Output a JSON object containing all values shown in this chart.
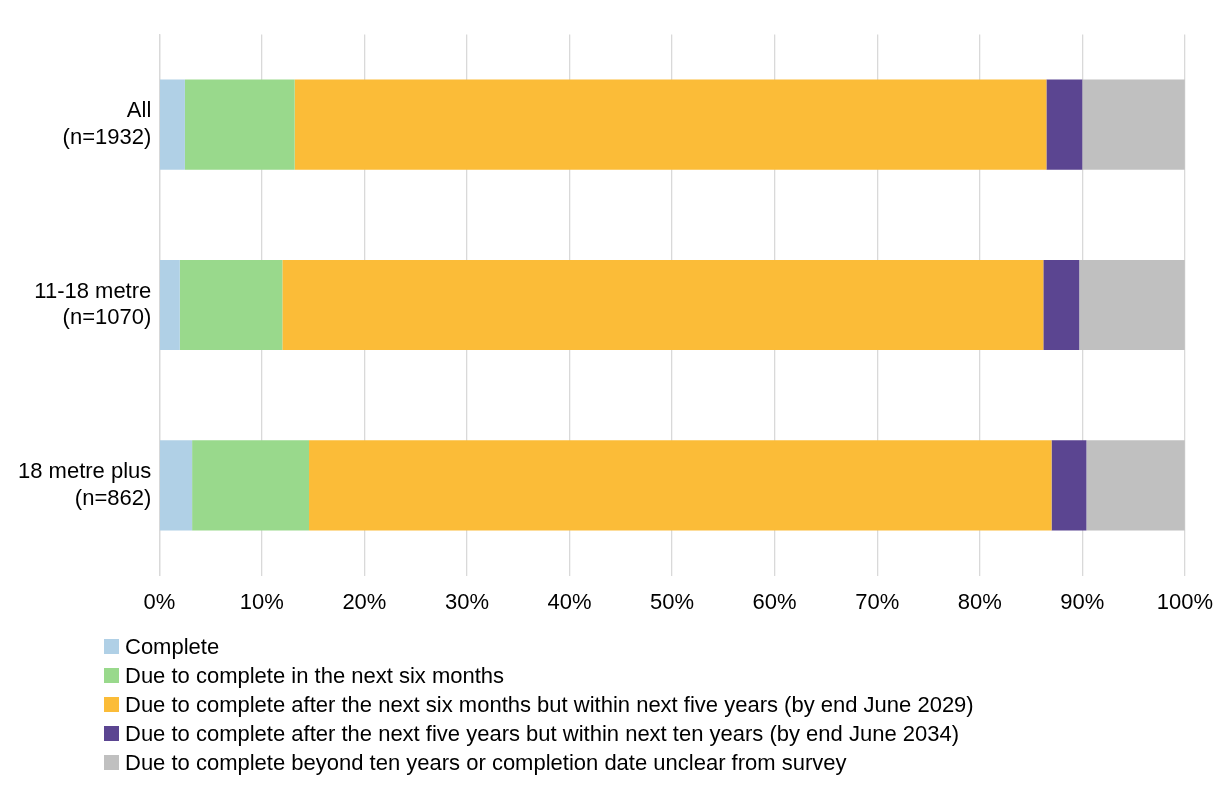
{
  "chart_data": {
    "type": "bar",
    "orientation": "horizontal",
    "stacked": true,
    "categories": [
      "All\n(n=1932)",
      "11-18 metre\n(n=1070)",
      "18 metre plus\n(n=862)"
    ],
    "series": [
      {
        "name": "Complete",
        "color": "#b0d0e6",
        "values": [
          2.5,
          2.0,
          3.2
        ]
      },
      {
        "name": "Due to complete in the next six months",
        "color": "#99d98c",
        "values": [
          10.7,
          10.0,
          11.4
        ]
      },
      {
        "name": "Due to complete after the next six months but within next five years (by end June 2029)",
        "color": "#fbbc38",
        "values": [
          73.3,
          74.2,
          72.4
        ]
      },
      {
        "name": "Due to complete after the next five years but within next ten years (by end June 2034)",
        "color": "#5b4591",
        "values": [
          3.5,
          3.5,
          3.4
        ]
      },
      {
        "name": "Due to complete beyond ten years or completion date unclear from survey",
        "color": "#c0c0c0",
        "values": [
          10.0,
          10.3,
          9.6
        ]
      }
    ],
    "xlim": [
      0,
      100
    ],
    "xticks": [
      {
        "value": 0,
        "label": "0%"
      },
      {
        "value": 10,
        "label": "10%"
      },
      {
        "value": 20,
        "label": "20%"
      },
      {
        "value": 30,
        "label": "30%"
      },
      {
        "value": 40,
        "label": "40%"
      },
      {
        "value": 50,
        "label": "50%"
      },
      {
        "value": 60,
        "label": "60%"
      },
      {
        "value": 70,
        "label": "70%"
      },
      {
        "value": 80,
        "label": "80%"
      },
      {
        "value": 90,
        "label": "90%"
      },
      {
        "value": 100,
        "label": "100%"
      }
    ],
    "grid": "x",
    "legend": "bottom"
  }
}
